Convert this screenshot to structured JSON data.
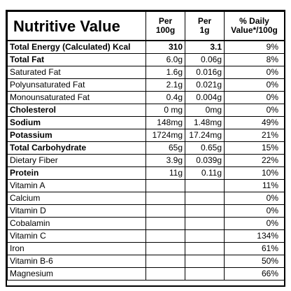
{
  "title": "Nutritive Value",
  "columns": {
    "per100g": [
      "Per",
      "100g"
    ],
    "per1g": [
      "Per",
      "1g"
    ],
    "dv": [
      "% Daily",
      "Value*/100g"
    ]
  },
  "rows": [
    {
      "name": "Total Energy (Calculated) Kcal",
      "v100": "310",
      "v1": "3.1",
      "dv": "9%",
      "bold": true,
      "energy": true
    },
    {
      "name": "Total Fat",
      "v100": "6.0g",
      "v1": "0.06g",
      "dv": "8%",
      "bold": true
    },
    {
      "name": "Saturated Fat",
      "v100": "1.6g",
      "v1": "0.016g",
      "dv": "0%",
      "bold": false
    },
    {
      "name": "Polyunsaturated Fat",
      "v100": "2.1g",
      "v1": "0.021g",
      "dv": "0%",
      "bold": false
    },
    {
      "name": "Monounsaturated Fat",
      "v100": "0.4g",
      "v1": "0.004g",
      "dv": "0%",
      "bold": false
    },
    {
      "name": "Cholesterol",
      "v100": "0 mg",
      "v1": "0mg",
      "dv": "0%",
      "bold": true
    },
    {
      "name": "Sodium",
      "v100": "148mg",
      "v1": "1.48mg",
      "dv": "49%",
      "bold": true
    },
    {
      "name": "Potassium",
      "v100": "1724mg",
      "v1": "17.24mg",
      "dv": "21%",
      "bold": true
    },
    {
      "name": "Total Carbohydrate",
      "v100": "65g",
      "v1": "0.65g",
      "dv": "15%",
      "bold": true
    },
    {
      "name": "Dietary Fiber",
      "v100": "3.9g",
      "v1": "0.039g",
      "dv": "22%",
      "bold": false
    },
    {
      "name": "Protein",
      "v100": "11g",
      "v1": "0.11g",
      "dv": "10%",
      "bold": true
    },
    {
      "name": "Vitamin A",
      "v100": "",
      "v1": "",
      "dv": "11%",
      "bold": false
    },
    {
      "name": "Calcium",
      "v100": "",
      "v1": "",
      "dv": "0%",
      "bold": false
    },
    {
      "name": "Vitamin D",
      "v100": "",
      "v1": "",
      "dv": "0%",
      "bold": false
    },
    {
      "name": "Cobalamin",
      "v100": "",
      "v1": "",
      "dv": "0%",
      "bold": false
    },
    {
      "name": "Vitamin C",
      "v100": "",
      "v1": "",
      "dv": "134%",
      "bold": false
    },
    {
      "name": "Iron",
      "v100": "",
      "v1": "",
      "dv": "61%",
      "bold": false
    },
    {
      "name": "Vitamin B-6",
      "v100": "",
      "v1": "",
      "dv": "50%",
      "bold": false
    },
    {
      "name": "Magnesium",
      "v100": "",
      "v1": "",
      "dv": "66%",
      "bold": false
    }
  ]
}
